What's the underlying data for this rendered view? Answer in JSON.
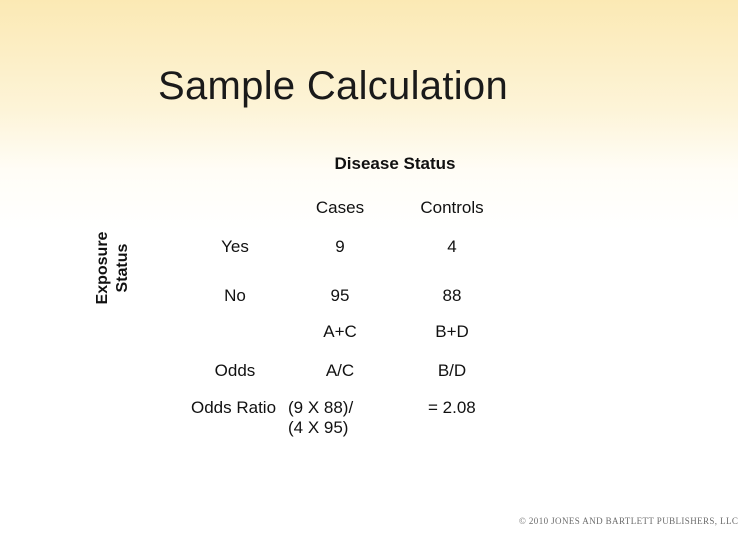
{
  "slide": {
    "title": "Sample Calculation",
    "column_group_header": "Disease Status",
    "row_group_header": [
      "Exposure",
      "Status"
    ],
    "columns": [
      "Cases",
      "Controls"
    ],
    "rows": [
      {
        "label": "Yes",
        "cases": "9",
        "controls": "4"
      },
      {
        "label": "No",
        "cases": "95",
        "controls": "88"
      }
    ],
    "totals": {
      "cases": "A+C",
      "controls": "B+D"
    },
    "odds": {
      "label": "Odds",
      "cases": "A/C",
      "controls": "B/D"
    },
    "odds_ratio": {
      "label": "Odds Ratio",
      "formula_line1": "(9 X 88)/",
      "formula_line2": "(4 X 95)",
      "result": "= 2.08"
    },
    "copyright": "© 2010 JONES AND BARTLETT PUBLISHERS, LLC"
  }
}
